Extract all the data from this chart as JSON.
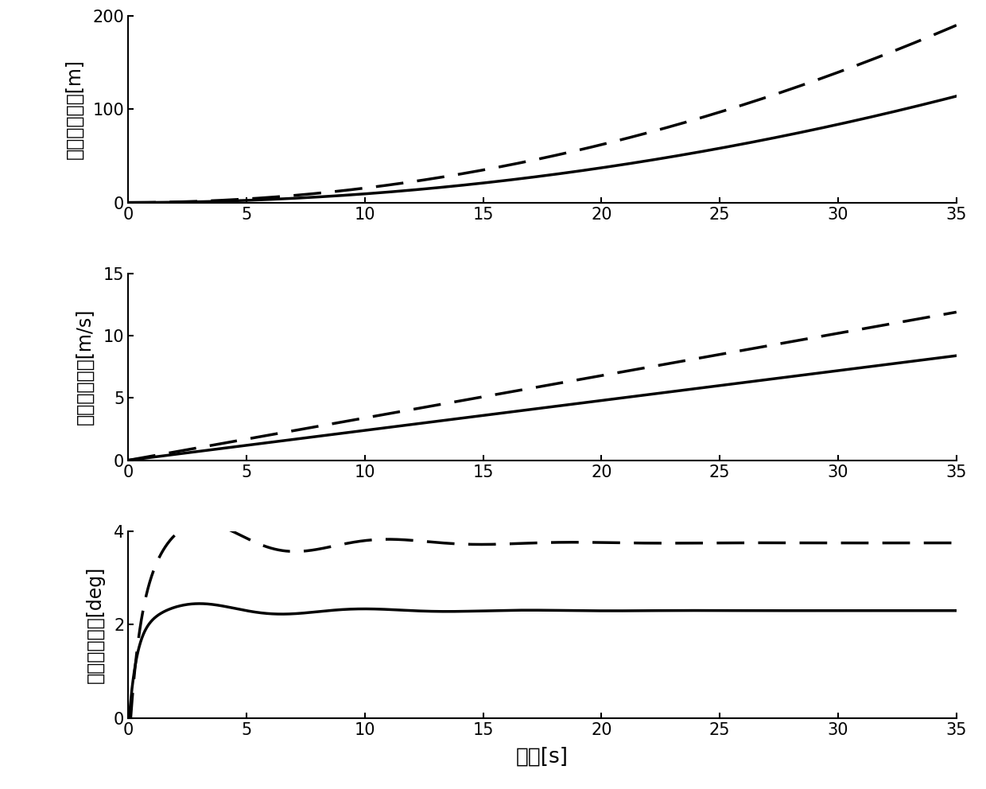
{
  "xlabel": "时间[s]",
  "ylabel1": "导航位置误差[m]",
  "ylabel2": "导航速度误差[m/s]",
  "ylabel3": "导航姿态误差[deg]",
  "xlim": [
    0,
    35
  ],
  "ylim1": [
    0,
    200
  ],
  "ylim2": [
    0,
    15
  ],
  "ylim3": [
    0,
    4
  ],
  "yticks1": [
    0,
    100,
    200
  ],
  "yticks2": [
    0,
    5,
    10,
    15
  ],
  "yticks3": [
    0,
    2,
    4
  ],
  "xticks": [
    0,
    5,
    10,
    15,
    20,
    25,
    30,
    35
  ],
  "background_color": "#ffffff",
  "line_color": "#000000",
  "linewidth_solid": 2.5,
  "linewidth_dashed": 2.5,
  "fontsize_label": 17,
  "fontsize_tick": 15,
  "fontsize_xlabel": 19
}
